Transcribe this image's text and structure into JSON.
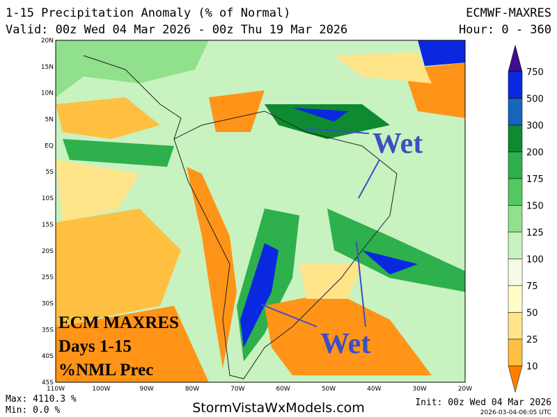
{
  "header": {
    "title": "1-15 Precipitation Anomaly (% of Normal)",
    "model": "ECMWF-MAXRES",
    "valid": "Valid: 00z Wed 04 Mar 2026 - 00z Thu 19 Mar 2026",
    "hour": "Hour: 0 - 360"
  },
  "map": {
    "lat_labels": [
      "20N",
      "15N",
      "10N",
      "5N",
      "EQ",
      "5S",
      "10S",
      "15S",
      "20S",
      "25S",
      "30S",
      "35S",
      "40S",
      "45S"
    ],
    "lon_labels": [
      "110W",
      "100W",
      "90W",
      "80W",
      "70W",
      "60W",
      "50W",
      "40W",
      "30W",
      "20W"
    ],
    "annotations": [
      "Wet",
      "Wet"
    ],
    "overlay": [
      "ECM MAXRES",
      "Days 1-15",
      "%NML Prec"
    ]
  },
  "colorbar": {
    "levels": [
      750,
      500,
      300,
      200,
      175,
      150,
      125,
      100,
      75,
      50,
      25,
      10
    ],
    "colors": [
      "#3c1090",
      "#0a28e0",
      "#1666c0",
      "#0e8a30",
      "#2eb04c",
      "#52c860",
      "#90e08c",
      "#c8f2c0",
      "#f4fce8",
      "#fffcc8",
      "#ffe48a",
      "#ffbf40",
      "#ff9418",
      "#ff8000"
    ]
  },
  "footer": {
    "max": "Max: 4110.3 %",
    "min": "Min: 0.0 %",
    "site": "StormVistaWxModels.com",
    "init": "Init: 00z Wed 04 Mar 2026",
    "stamp": "2026-03-04-06:05 UTC"
  }
}
